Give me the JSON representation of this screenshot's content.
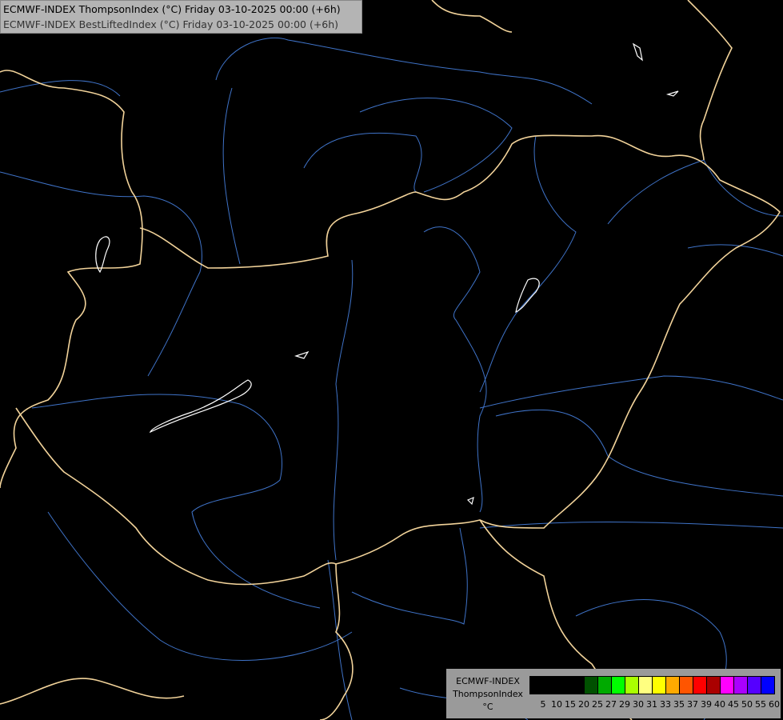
{
  "title": {
    "line1": "ECMWF-INDEX ThompsonIndex (°C) Friday 03-10-2025 00:00 (+6h)",
    "line2": "ECMWF-INDEX BestLiftedIndex (°C) Friday 03-10-2025 00:00 (+6h)"
  },
  "legend": {
    "source": "ECMWF-INDEX",
    "parameter": "ThompsonIndex",
    "unit": "°C",
    "labels": [
      "5",
      "10",
      "15",
      "20",
      "25",
      "27",
      "29",
      "30",
      "31",
      "33",
      "35",
      "37",
      "39",
      "40",
      "45",
      "50",
      "55",
      "60"
    ],
    "colors": [
      "#000000",
      "#000000",
      "#000000",
      "#000000",
      "#005000",
      "#00aa00",
      "#00ff00",
      "#aaff00",
      "#ffff80",
      "#ffff00",
      "#ffaa00",
      "#ff5500",
      "#ff0000",
      "#aa0000",
      "#ff00ff",
      "#aa00ff",
      "#5500ff",
      "#0000ff"
    ]
  },
  "map": {
    "border_color": "#f2d39a",
    "river_color": "#3f73c8",
    "lake_color": "#ffffff",
    "background": "#000000"
  }
}
